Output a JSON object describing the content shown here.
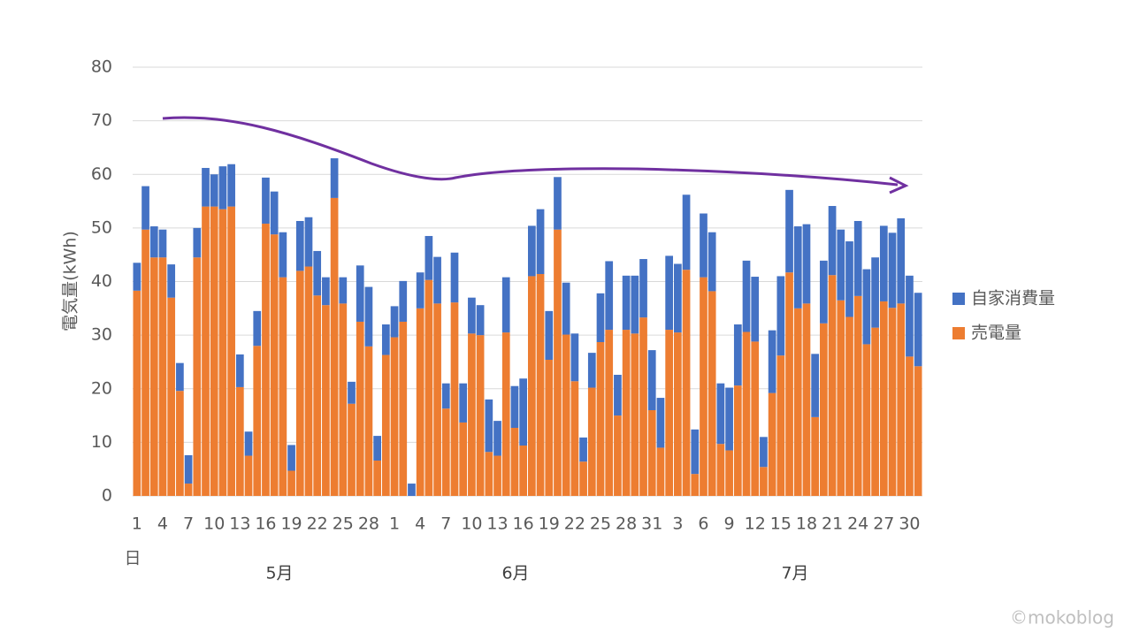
{
  "chart_data": {
    "type": "stacked_bar",
    "y_label": "電気量(kWh)",
    "x_label": "日",
    "group_labels": [
      "5月",
      "6月",
      "7月"
    ],
    "watermark": "©mokoblog",
    "categories": [
      "1",
      null,
      null,
      "4",
      null,
      null,
      "7",
      null,
      null,
      "10",
      null,
      null,
      "13",
      null,
      null,
      "16",
      null,
      null,
      "19",
      null,
      null,
      "22",
      null,
      null,
      "25",
      null,
      null,
      "28",
      null,
      null,
      "1",
      null,
      null,
      "4",
      null,
      null,
      "7",
      null,
      null,
      "10",
      null,
      null,
      "13",
      null,
      null,
      "16",
      null,
      null,
      "19",
      null,
      null,
      "22",
      null,
      null,
      "25",
      null,
      null,
      "28",
      null,
      null,
      "31",
      null,
      null,
      "3",
      null,
      null,
      "6",
      null,
      null,
      "9",
      null,
      null,
      "12",
      null,
      null,
      "15",
      null,
      null,
      "18",
      null,
      null,
      "21",
      null,
      null,
      "24",
      null,
      null,
      "27",
      null,
      null,
      "30",
      null
    ],
    "series": [
      {
        "name": "売電量",
        "color": "#ed7d31",
        "values": [
          38.3,
          49.7,
          44.5,
          44.5,
          37,
          19.6,
          2.3,
          44.5,
          54,
          54,
          53.5,
          54,
          20.3,
          7.5,
          28,
          50.8,
          48.8,
          40.8,
          4.7,
          42,
          42.8,
          37.4,
          35.6,
          55.6,
          35.9,
          17.2,
          32.5,
          27.9,
          6.6,
          26.3,
          29.6,
          32.5,
          0,
          35,
          40.3,
          35.9,
          16.3,
          36.1,
          13.7,
          30.3,
          30,
          8.2,
          7.5,
          30.5,
          12.7,
          9.4,
          41,
          41.4,
          25.4,
          49.7,
          30.1,
          21.4,
          6.4,
          20.2,
          28.7,
          31,
          15,
          31,
          30.3,
          33.3,
          16,
          9,
          31,
          30.5,
          42.2,
          4.1,
          40.8,
          38.2,
          9.7,
          8.5,
          20.6,
          30.6,
          28.8,
          5.4,
          19.2,
          26.2,
          41.7,
          35,
          35.9,
          14.7,
          32.2,
          41.2,
          36.5,
          33.4,
          37.3,
          28.3,
          31.4,
          36.3,
          35.1,
          35.9,
          26,
          24.2
        ]
      },
      {
        "name": "自家消費量",
        "color": "#4472c4",
        "values": [
          5.2,
          8.1,
          5.8,
          5.2,
          6.2,
          5.2,
          5.3,
          5.5,
          7.2,
          6,
          8,
          7.9,
          6.1,
          4.5,
          6.5,
          8.6,
          8,
          8.4,
          4.8,
          9.3,
          9.2,
          8.3,
          5.2,
          7.4,
          4.9,
          4.1,
          10.5,
          11.1,
          4.6,
          5.7,
          5.8,
          7.6,
          2.3,
          6.7,
          8.2,
          8.7,
          4.7,
          9.3,
          7.3,
          6.7,
          5.6,
          9.8,
          6.5,
          10.3,
          7.8,
          12.5,
          9.4,
          12.1,
          9.1,
          9.8,
          9.7,
          8.9,
          4.5,
          6.5,
          9.1,
          12.8,
          7.6,
          10.1,
          10.8,
          10.9,
          11.2,
          9.3,
          13.8,
          12.8,
          14,
          8.3,
          11.9,
          11,
          11.3,
          11.7,
          11.4,
          13.3,
          12.1,
          5.6,
          11.7,
          14.8,
          15.4,
          15.3,
          14.8,
          11.8,
          11.7,
          12.9,
          13.2,
          14.1,
          14,
          14,
          13.1,
          14.1,
          14,
          15.9,
          15.1,
          13.7
        ]
      }
    ],
    "ylim": [
      0,
      80
    ],
    "yticks": [
      0,
      10,
      20,
      30,
      40,
      50,
      60,
      70,
      80
    ],
    "grid": true
  }
}
